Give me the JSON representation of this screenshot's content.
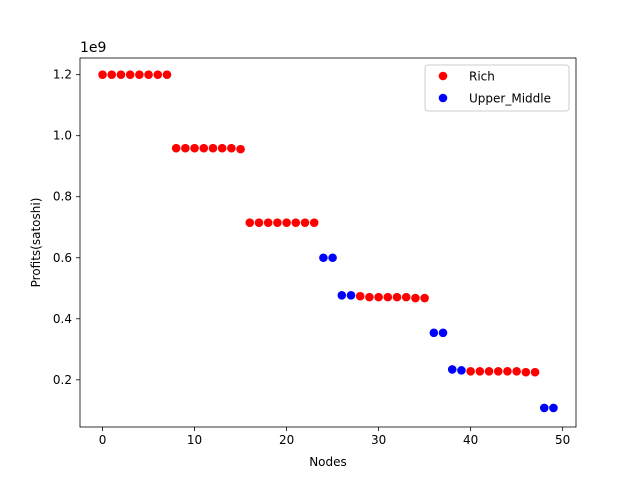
{
  "chart_data": {
    "type": "scatter",
    "title": "",
    "xlabel": "Nodes",
    "ylabel": "Profits(satoshi)",
    "y_offset_label": "1e9",
    "xlim": [
      -2.45,
      51.45
    ],
    "ylim": [
      0.0454,
      1.2546
    ],
    "xticks": [
      0,
      10,
      20,
      30,
      40,
      50
    ],
    "yticks": [
      0.2,
      0.4,
      0.6,
      0.8,
      1.0,
      1.2
    ],
    "ytick_labels": [
      "0.2",
      "0.4",
      "0.6",
      "0.8",
      "1.0",
      "1.2"
    ],
    "grid": false,
    "legend_position": "upper right",
    "series": [
      {
        "name": "Rich",
        "color": "#ff0000",
        "points": [
          [
            0,
            1.2
          ],
          [
            1,
            1.2
          ],
          [
            2,
            1.2
          ],
          [
            3,
            1.2
          ],
          [
            4,
            1.2
          ],
          [
            5,
            1.2
          ],
          [
            6,
            1.2
          ],
          [
            7,
            1.2
          ],
          [
            8,
            0.959
          ],
          [
            9,
            0.959
          ],
          [
            10,
            0.959
          ],
          [
            11,
            0.959
          ],
          [
            12,
            0.959
          ],
          [
            13,
            0.959
          ],
          [
            14,
            0.959
          ],
          [
            15,
            0.956
          ],
          [
            16,
            0.715
          ],
          [
            17,
            0.715
          ],
          [
            18,
            0.715
          ],
          [
            19,
            0.715
          ],
          [
            20,
            0.715
          ],
          [
            21,
            0.715
          ],
          [
            22,
            0.715
          ],
          [
            23,
            0.715
          ],
          [
            28,
            0.474
          ],
          [
            29,
            0.471
          ],
          [
            30,
            0.471
          ],
          [
            31,
            0.471
          ],
          [
            32,
            0.471
          ],
          [
            33,
            0.471
          ],
          [
            34,
            0.468
          ],
          [
            35,
            0.468
          ],
          [
            40,
            0.228
          ],
          [
            41,
            0.228
          ],
          [
            42,
            0.228
          ],
          [
            43,
            0.228
          ],
          [
            44,
            0.228
          ],
          [
            45,
            0.228
          ],
          [
            46,
            0.225
          ],
          [
            47,
            0.225
          ]
        ]
      },
      {
        "name": "Upper_Middle",
        "color": "#0000ff",
        "points": [
          [
            24,
            0.6
          ],
          [
            25,
            0.6
          ],
          [
            26,
            0.477
          ],
          [
            27,
            0.477
          ],
          [
            36,
            0.354
          ],
          [
            37,
            0.354
          ],
          [
            38,
            0.234
          ],
          [
            39,
            0.231
          ],
          [
            48,
            0.108
          ],
          [
            49,
            0.108
          ]
        ]
      }
    ]
  }
}
